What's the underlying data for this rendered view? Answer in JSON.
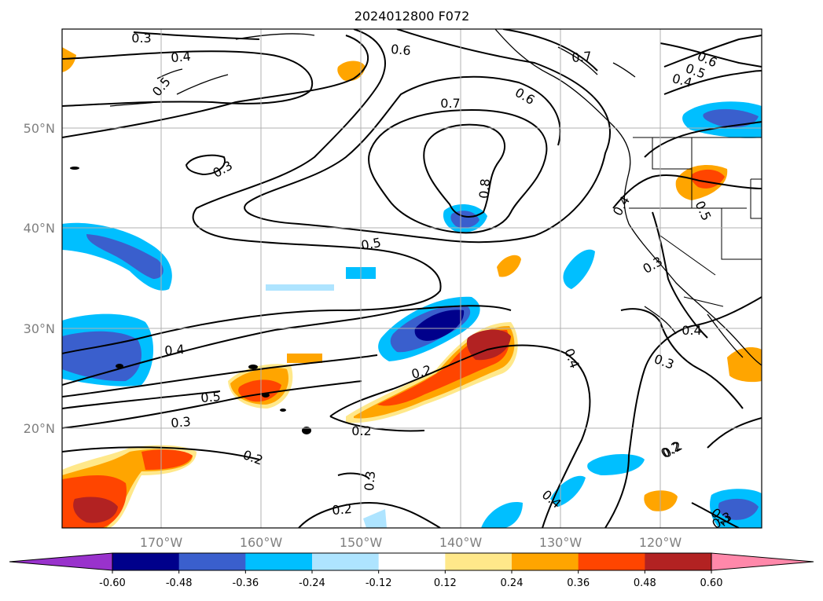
{
  "title": "2024012800 F072",
  "lat_labels": [
    "50°N",
    "40°N",
    "30°N",
    "20°N"
  ],
  "lon_labels": [
    "170°W",
    "160°W",
    "150°W",
    "140°W",
    "130°W",
    "120°W"
  ],
  "colorbar": {
    "ticks": [
      "-0.60",
      "-0.48",
      "-0.36",
      "-0.24",
      "-0.12",
      "0.12",
      "0.24",
      "0.36",
      "0.48",
      "0.60"
    ],
    "colors": [
      "#9932cc",
      "#00008b",
      "#3a5fcd",
      "#00bfff",
      "#aee4ff",
      "#ffffff",
      "#ffe88a",
      "#ffa500",
      "#ff4500",
      "#b22222",
      "#ff88aa"
    ]
  },
  "contour_labels": [
    "0.3",
    "0.4",
    "0.5",
    "0.6",
    "0.7",
    "0.6",
    "0.3",
    "0.7",
    "0.6",
    "0.5",
    "0.4",
    "0.3",
    "0.8",
    "0.5",
    "0.4",
    "0.4",
    "0.5",
    "0.3",
    "0.2",
    "0.4",
    "0.2",
    "0.3",
    "0.4",
    "0.5",
    "0.3",
    "0.2",
    "0.2",
    "0.3",
    "0.2",
    "0.4",
    "0.2",
    "0.2"
  ]
}
